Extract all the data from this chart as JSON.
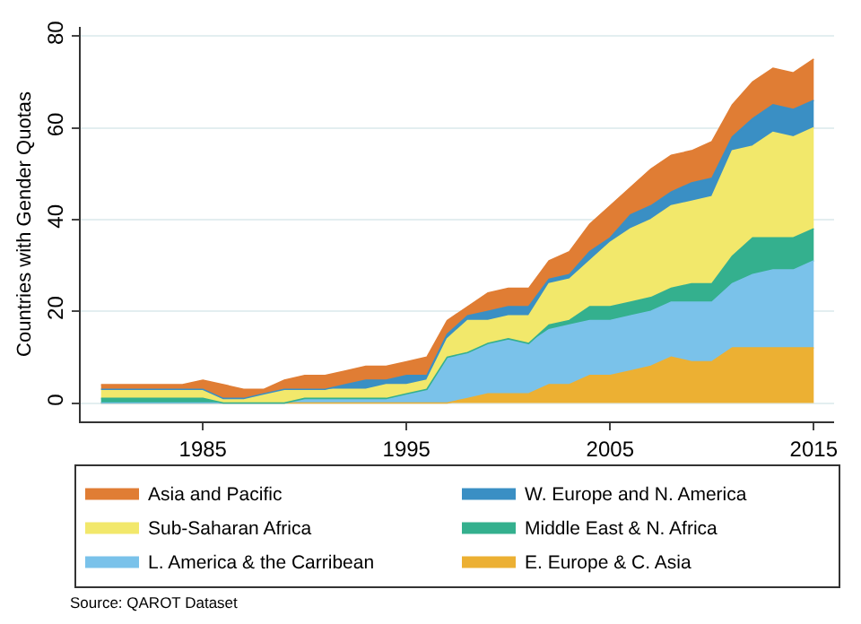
{
  "chart_data": {
    "type": "area",
    "stacked": true,
    "ylabel": "Countries with Gender Quotas",
    "x": [
      1980,
      1981,
      1982,
      1983,
      1984,
      1985,
      1986,
      1987,
      1988,
      1989,
      1990,
      1991,
      1992,
      1993,
      1994,
      1995,
      1996,
      1997,
      1998,
      1999,
      2000,
      2001,
      2002,
      2003,
      2004,
      2005,
      2006,
      2007,
      2008,
      2009,
      2010,
      2011,
      2012,
      2013,
      2014,
      2015
    ],
    "series": [
      {
        "name": "E. Europe & C. Asia",
        "color": "#ecb033",
        "values": [
          0,
          0,
          0,
          0,
          0,
          0,
          0,
          0,
          0,
          0,
          0,
          0,
          0,
          0,
          0,
          0,
          0,
          0,
          1,
          2,
          2,
          2,
          4,
          4,
          6,
          6,
          7,
          8,
          10,
          9,
          9,
          12,
          12,
          12,
          12,
          12
        ]
      },
      {
        "name": "L. America & the Carribean",
        "color": "#7ac2ea",
        "values": [
          0,
          0,
          0,
          0,
          0,
          0,
          0,
          0,
          0,
          0,
          1,
          1,
          1,
          1,
          1,
          2,
          3,
          10,
          10,
          11,
          12,
          11,
          12,
          13,
          12,
          12,
          12,
          12,
          12,
          13,
          13,
          14,
          16,
          17,
          17,
          19
        ]
      },
      {
        "name": "Middle East & N. Africa",
        "color": "#34b08e",
        "values": [
          1,
          1,
          1,
          1,
          1,
          1,
          0,
          0,
          0,
          0,
          0,
          0,
          0,
          0,
          0,
          0,
          0,
          0,
          0,
          0,
          0,
          0,
          1,
          1,
          3,
          3,
          3,
          3,
          3,
          4,
          4,
          6,
          8,
          7,
          7,
          7
        ]
      },
      {
        "name": "Sub-Saharan Africa",
        "color": "#f2e86b",
        "values": [
          2,
          2,
          2,
          2,
          2,
          2,
          1,
          1,
          2,
          3,
          2,
          2,
          2,
          2,
          3,
          2,
          2,
          4,
          7,
          5,
          5,
          6,
          9,
          9,
          10,
          14,
          16,
          17,
          18,
          18,
          19,
          23,
          20,
          23,
          22,
          22
        ]
      },
      {
        "name": "W. Europe and N. America",
        "color": "#3a8fc4",
        "values": [
          0,
          0,
          0,
          0,
          0,
          0,
          0,
          0,
          0,
          0,
          0,
          0,
          1,
          2,
          1,
          2,
          1,
          1,
          1,
          2,
          2,
          2,
          1,
          1,
          2,
          1,
          3,
          3,
          3,
          4,
          4,
          3,
          6,
          6,
          6,
          6
        ]
      },
      {
        "name": "Asia and Pacific",
        "color": "#e07d34",
        "values": [
          1,
          1,
          1,
          1,
          1,
          2,
          3,
          2,
          1,
          2,
          3,
          3,
          3,
          3,
          3,
          3,
          4,
          3,
          2,
          4,
          4,
          4,
          4,
          5,
          6,
          7,
          6,
          8,
          8,
          7,
          8,
          7,
          8,
          8,
          8,
          9
        ]
      }
    ],
    "xlim": [
      1979,
      2016
    ],
    "xticks": [
      1985,
      1995,
      2005,
      2015
    ],
    "ylim": [
      -4,
      82
    ],
    "yticks": [
      0,
      20,
      40,
      60,
      80
    ],
    "grid": "y",
    "legend": "bottom",
    "annotations": [
      "Source: QAROT Dataset"
    ]
  }
}
